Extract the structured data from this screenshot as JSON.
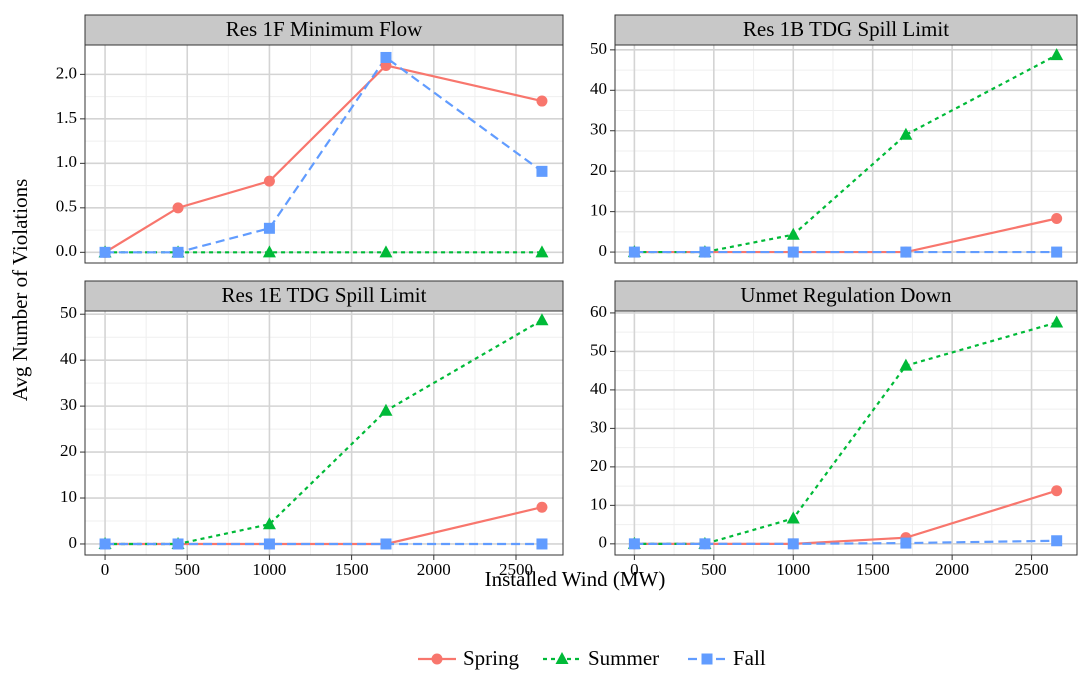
{
  "xlabel": "Installed Wind (MW)",
  "ylabel": "Avg Number of Violations",
  "legend": [
    {
      "name": "Spring",
      "color": "#f8766d",
      "dash": "none",
      "marker": "circle"
    },
    {
      "name": "Summer",
      "color": "#00ba38",
      "dash": "4,4",
      "marker": "triangle"
    },
    {
      "name": "Fall",
      "color": "#619cff",
      "dash": "9,5",
      "marker": "square"
    }
  ],
  "chart_data": [
    {
      "type": "line",
      "title": "Res 1F Minimum Flow",
      "grid": true,
      "x": [
        0,
        444,
        1000,
        1709,
        2658
      ],
      "xlim": [
        -122,
        2786
      ],
      "xticks": [
        0,
        500,
        1000,
        1500,
        2000,
        2500
      ],
      "ylim": [
        -0.12,
        2.33
      ],
      "yticks": [
        {
          "value": 0,
          "label": "0.0"
        },
        0.5,
        {
          "value": 1,
          "label": "1.0"
        },
        1.5,
        {
          "value": 2,
          "label": "2.0"
        }
      ],
      "series": [
        {
          "values": [
            0,
            0.5,
            0.8,
            2.1,
            1.7
          ]
        },
        {
          "values": [
            0,
            0,
            0,
            0,
            0
          ]
        },
        {
          "values": [
            0,
            0,
            0.27,
            2.19,
            0.91
          ]
        }
      ]
    },
    {
      "type": "line",
      "title": "Res 1B TDG Spill Limit",
      "grid": true,
      "x": [
        0,
        444,
        1000,
        1709,
        2658
      ],
      "xlim": [
        -122,
        2786
      ],
      "xticks": [
        0,
        500,
        1000,
        1500,
        2000,
        2500
      ],
      "ylim": [
        -2.7,
        51.2
      ],
      "yticks": [
        0,
        10,
        20,
        30,
        40,
        50
      ],
      "series": [
        {
          "values": [
            0,
            0,
            0,
            0,
            8.3
          ]
        },
        {
          "values": [
            0,
            0,
            4.3,
            29,
            48.7
          ]
        },
        {
          "values": [
            0,
            0,
            0,
            0,
            0
          ]
        }
      ]
    },
    {
      "type": "line",
      "title": "Res 1E TDG Spill Limit",
      "grid": true,
      "x": [
        0,
        444,
        1000,
        1709,
        2658
      ],
      "xlim": [
        -122,
        2786
      ],
      "xticks": [
        0,
        500,
        1000,
        1500,
        2000,
        2500
      ],
      "ylim": [
        -2.4,
        50.7
      ],
      "yticks": [
        0,
        10,
        20,
        30,
        40,
        50
      ],
      "series": [
        {
          "values": [
            0,
            0,
            0,
            0,
            8
          ]
        },
        {
          "values": [
            0,
            0,
            4.3,
            29,
            48.7
          ]
        },
        {
          "values": [
            0,
            0,
            0,
            0,
            0
          ]
        }
      ]
    },
    {
      "type": "line",
      "title": "Unmet Regulation Down",
      "grid": true,
      "x": [
        0,
        444,
        1000,
        1709,
        2658
      ],
      "xlim": [
        -122,
        2786
      ],
      "xticks": [
        0,
        500,
        1000,
        1500,
        2000,
        2500
      ],
      "ylim": [
        -2.9,
        60.5
      ],
      "yticks": [
        0,
        10,
        20,
        30,
        40,
        50,
        60
      ],
      "series": [
        {
          "values": [
            0,
            0,
            0,
            1.6,
            13.8
          ]
        },
        {
          "values": [
            0,
            0,
            6.6,
            46.3,
            57.5
          ]
        },
        {
          "values": [
            0,
            0,
            0,
            0.2,
            0.8
          ]
        }
      ]
    }
  ]
}
